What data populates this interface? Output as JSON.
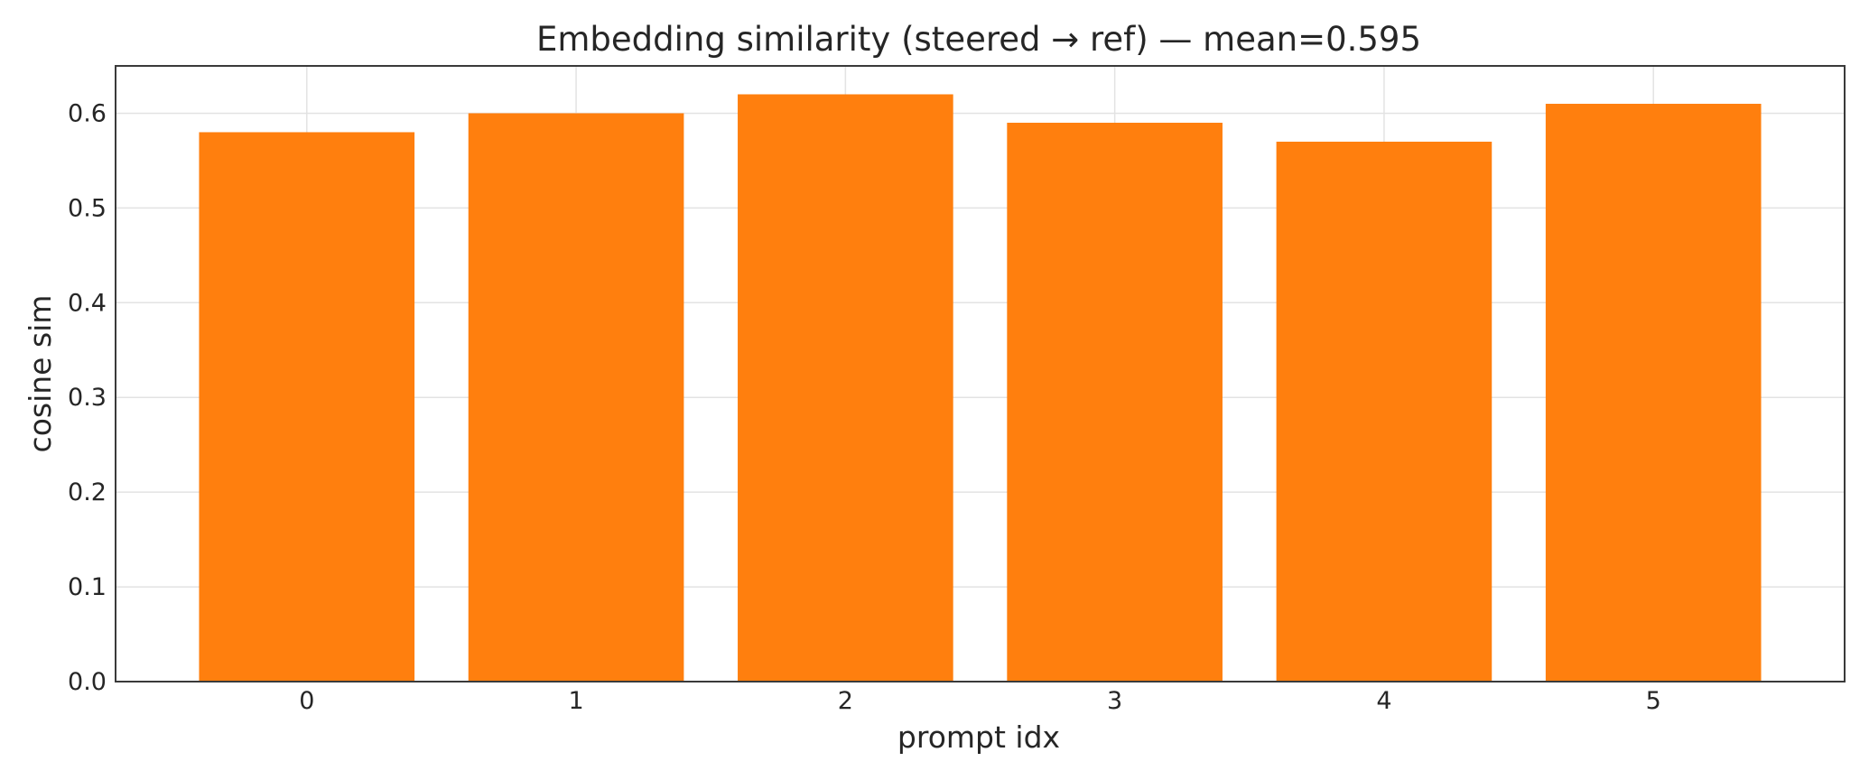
{
  "chart_data": {
    "type": "bar",
    "title": "Embedding similarity (steered → ref) — mean=0.595",
    "xlabel": "prompt idx",
    "ylabel": "cosine sim",
    "categories": [
      "0",
      "1",
      "2",
      "3",
      "4",
      "5"
    ],
    "values": [
      0.58,
      0.6,
      0.62,
      0.59,
      0.57,
      0.61
    ],
    "ylim": [
      0.0,
      0.65
    ],
    "yticks": [
      0.0,
      0.1,
      0.2,
      0.3,
      0.4,
      0.5,
      0.6
    ],
    "ytick_labels": [
      "0.0",
      "0.1",
      "0.2",
      "0.3",
      "0.4",
      "0.5",
      "0.6"
    ],
    "bar_color": "#ff7f0e",
    "grid": true,
    "legend": "none"
  }
}
